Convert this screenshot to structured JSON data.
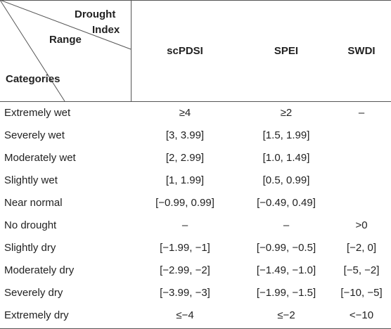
{
  "header": {
    "corner_top": "Drought",
    "corner_top_2": "Index",
    "corner_middle": "Range",
    "corner_bottom": "Categories",
    "columns": [
      "scPDSI",
      "SPEI",
      "SWDI"
    ]
  },
  "rows": [
    {
      "category": "Extremely wet",
      "scpdsi": "≥4",
      "spei": "≥2",
      "swdi": "–"
    },
    {
      "category": "Severely wet",
      "scpdsi": "[3, 3.99]",
      "spei": "[1.5, 1.99]",
      "swdi": ""
    },
    {
      "category": "Moderately wet",
      "scpdsi": "[2, 2.99]",
      "spei": "[1.0, 1.49]",
      "swdi": ""
    },
    {
      "category": "Slightly wet",
      "scpdsi": "[1, 1.99]",
      "spei": "[0.5, 0.99]",
      "swdi": ""
    },
    {
      "category": "Near normal",
      "scpdsi": "[−0.99, 0.99]",
      "spei": "[−0.49, 0.49]",
      "swdi": ""
    },
    {
      "category": "No drought",
      "scpdsi": "–",
      "spei": "–",
      "swdi": ">0"
    },
    {
      "category": "Slightly dry",
      "scpdsi": "[−1.99, −1]",
      "spei": "[−0.99, −0.5]",
      "swdi": "[−2, 0]"
    },
    {
      "category": "Moderately dry",
      "scpdsi": "[−2.99, −2]",
      "spei": "[−1.49, −1.0]",
      "swdi": "[−5, −2]"
    },
    {
      "category": "Severely dry",
      "scpdsi": "[−3.99, −3]",
      "spei": "[−1.99, −1.5]",
      "swdi": "[−10, −5]"
    },
    {
      "category": "Extremely dry",
      "scpdsi": "≤−4",
      "spei": "≤−2",
      "swdi": "<−10"
    }
  ]
}
